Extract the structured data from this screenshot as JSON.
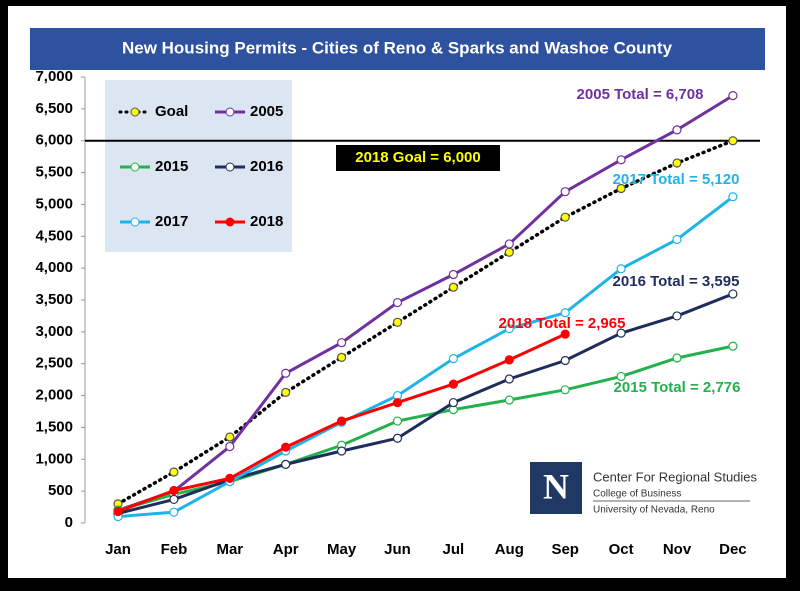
{
  "chart_data": {
    "type": "line",
    "title": "New Housing Permits - Cities of Reno & Sparks and Washoe County",
    "categories": [
      "Jan",
      "Feb",
      "Mar",
      "Apr",
      "May",
      "Jun",
      "Jul",
      "Aug",
      "Sep",
      "Oct",
      "Nov",
      "Dec"
    ],
    "series": [
      {
        "name": "Goal",
        "color": "#000000",
        "marker_color": "#ffff00",
        "dotted": true,
        "values": [
          300,
          800,
          1350,
          2050,
          2600,
          3150,
          3700,
          4250,
          4800,
          5250,
          5650,
          6000
        ]
      },
      {
        "name": "2005",
        "color": "#7030a0",
        "marker_color": "#ffffff",
        "values": [
          200,
          500,
          1200,
          2350,
          2830,
          3460,
          3900,
          4380,
          5200,
          5700,
          6170,
          6708
        ]
      },
      {
        "name": "2015",
        "color": "#22b14c",
        "marker_color": "#ffffff",
        "values": [
          200,
          450,
          650,
          920,
          1220,
          1600,
          1780,
          1930,
          2090,
          2300,
          2590,
          2776
        ]
      },
      {
        "name": "2016",
        "color": "#1f2d5c",
        "marker_color": "#ffffff",
        "values": [
          150,
          370,
          680,
          920,
          1130,
          1330,
          1890,
          2260,
          2550,
          2980,
          3250,
          3595
        ]
      },
      {
        "name": "2017",
        "color": "#1fb4e8",
        "marker_color": "#ffffff",
        "values": [
          100,
          170,
          650,
          1130,
          1580,
          2000,
          2580,
          3050,
          3300,
          3990,
          4450,
          5120
        ]
      },
      {
        "name": "2018",
        "color": "#ff0000",
        "marker_color": "#ff0000",
        "values": [
          180,
          510,
          700,
          1190,
          1600,
          1890,
          2180,
          2560,
          2965,
          null,
          null,
          null
        ]
      }
    ],
    "ylim": [
      0,
      7000
    ],
    "yticks": [
      0,
      500,
      {
        "value": 1000,
        "label": "1,000"
      },
      {
        "value": 1500,
        "label": "1,500"
      },
      {
        "value": 2000,
        "label": "2,000"
      },
      {
        "value": 2500,
        "label": "2,500"
      },
      {
        "value": 3000,
        "label": "3,000"
      },
      {
        "value": 3500,
        "label": "3,500"
      },
      {
        "value": 4000,
        "label": "4,000"
      },
      {
        "value": 4500,
        "label": "4,500"
      },
      {
        "value": 5000,
        "label": "5,000"
      },
      {
        "value": 5500,
        "label": "5,500"
      },
      {
        "value": 6000,
        "label": "6,000"
      },
      {
        "value": 6500,
        "label": "6,500"
      },
      {
        "value": 7000,
        "label": "7,000"
      }
    ],
    "reference_line": 6000,
    "annotations": [
      {
        "text": "2005 Total = 6,708",
        "color": "#7030a0"
      },
      {
        "text": "2017 Total = 5,120",
        "color": "#1fb4e8"
      },
      {
        "text": "2016 Total = 3,595",
        "color": "#1f2d5c"
      },
      {
        "text": "2018 Total = 2,965",
        "color": "#ff0000"
      },
      {
        "text": "2015 Total = 2,776",
        "color": "#22b14c"
      },
      {
        "text": "2018 Goal = 6,000",
        "color": "#ffff00"
      }
    ],
    "logo": {
      "mark": "N",
      "name": "Center For Regional Studies",
      "college": "College of Business",
      "university": "University of Nevada, Reno"
    }
  }
}
